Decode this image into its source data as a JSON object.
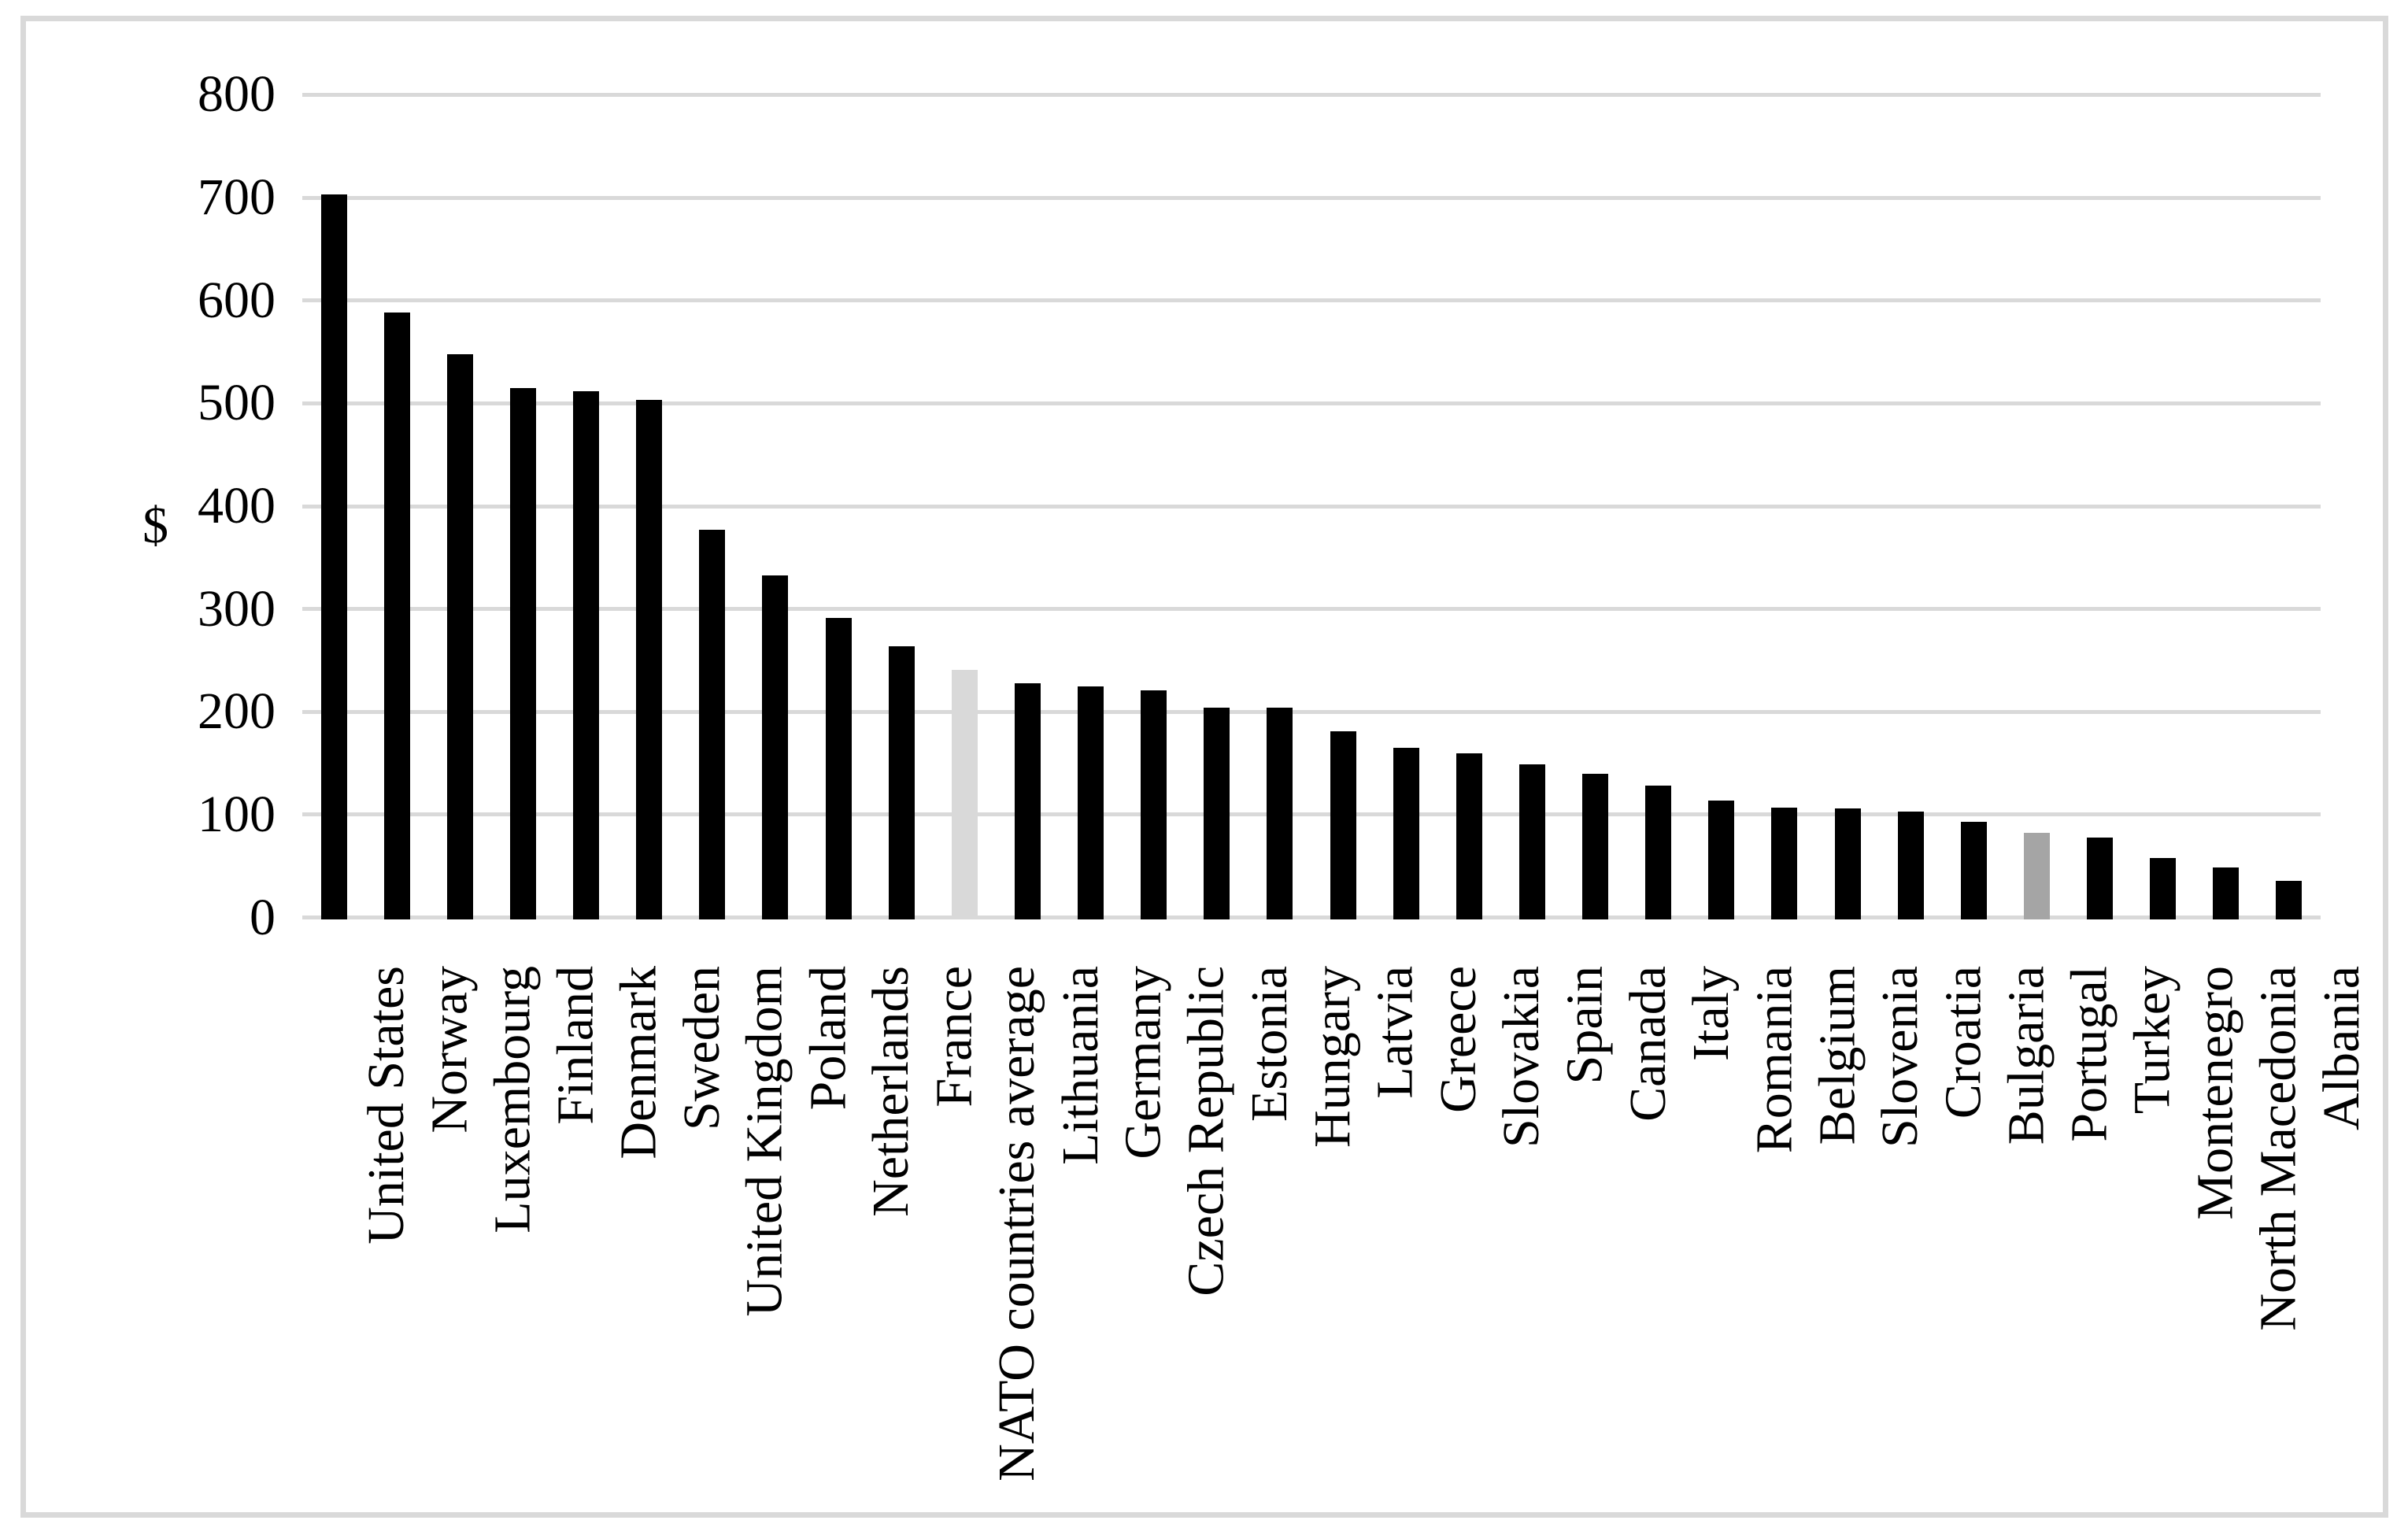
{
  "chart_data": {
    "type": "bar",
    "title": "",
    "xlabel": "",
    "ylabel": "$",
    "ylim": [
      0,
      800
    ],
    "yticks": [
      0,
      100,
      200,
      300,
      400,
      500,
      600,
      700,
      800
    ],
    "grid": "horizontal",
    "legend": "none",
    "bars": [
      {
        "label": "United States",
        "value": 703
      },
      {
        "label": "Norway",
        "value": 588
      },
      {
        "label": "Luxembourg",
        "value": 548
      },
      {
        "label": "Finland",
        "value": 515
      },
      {
        "label": "Denmark",
        "value": 512
      },
      {
        "label": "Sweden",
        "value": 503
      },
      {
        "label": "United Kingdom",
        "value": 377
      },
      {
        "label": "Poland",
        "value": 333
      },
      {
        "label": "Netherlands",
        "value": 291
      },
      {
        "label": "France",
        "value": 264
      },
      {
        "label": "NATO countries average",
        "value": 241,
        "color": "#d9d9d9"
      },
      {
        "label": "Lithuania",
        "value": 228
      },
      {
        "label": "Germany",
        "value": 225
      },
      {
        "label": "Czech Republic",
        "value": 221
      },
      {
        "label": "Estonia",
        "value": 204
      },
      {
        "label": "Hungary",
        "value": 204
      },
      {
        "label": "Latvia",
        "value": 181
      },
      {
        "label": "Greece",
        "value": 165
      },
      {
        "label": "Slovakia",
        "value": 160
      },
      {
        "label": "Spain",
        "value": 149
      },
      {
        "label": "Canada",
        "value": 140
      },
      {
        "label": "Italy",
        "value": 128
      },
      {
        "label": "Romania",
        "value": 114
      },
      {
        "label": "Belgium",
        "value": 107
      },
      {
        "label": "Slovenia",
        "value": 106
      },
      {
        "label": "Croatia",
        "value": 103
      },
      {
        "label": "Bulgaria",
        "value": 93
      },
      {
        "label": "Portugal",
        "value": 82,
        "color": "#a5a5a5"
      },
      {
        "label": "Turkey",
        "value": 78
      },
      {
        "label": "Montenegro",
        "value": 58
      },
      {
        "label": "North Macedonia",
        "value": 49
      },
      {
        "label": "Albania",
        "value": 36
      }
    ]
  },
  "colors": {
    "bar_default": "#000000",
    "bar_average": "#d9d9d9",
    "bar_portugal": "#a5a5a5",
    "gridline": "#d9d9d9",
    "frame_border": "#d9d9d9",
    "text": "#000000",
    "background": "#ffffff"
  }
}
